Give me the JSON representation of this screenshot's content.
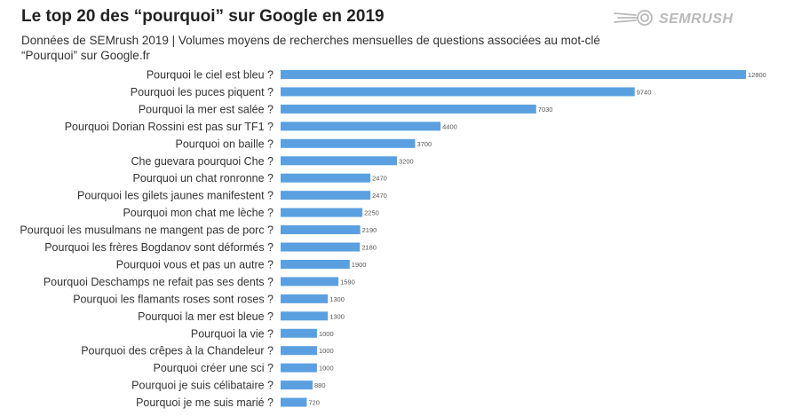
{
  "header": {
    "title": "Le top 20 des “pourquoi” sur Google en 2019",
    "subtitle": "Données de SEMrush 2019 | Volumes moyens de recherches mensuelles de questions associées au mot-clé “Pourquoi” sur Google.fr"
  },
  "logo": {
    "text": "SEMRUSH",
    "icon": "fireball-icon",
    "color": "#b9b9b9"
  },
  "colors": {
    "bar": "#5aa0e0"
  },
  "chart_data": {
    "type": "bar",
    "orientation": "horizontal",
    "categories": [
      "Pourquoi le ciel est bleu ?",
      "Pourquoi les puces piquent ?",
      "Pourquoi la mer est salée ?",
      "Pourquoi Dorian Rossini est pas sur TF1 ?",
      "Pourquoi on baille ?",
      "Che guevara pourquoi Che ?",
      "Pourquoi un chat ronronne ?",
      "Pourquoi les gilets jaunes manifestent ?",
      "Pourquoi mon chat me lèche ?",
      "Pourquoi les musulmans ne mangent pas de porc ?",
      "Pourquoi les frères Bogdanov sont déformés ?",
      "Pourquoi vous et pas un autre ?",
      "Pourquoi Deschamps ne refait pas ses dents ?",
      "Pourquoi les flamants roses sont roses ?",
      "Pourquoi la mer est bleue ?",
      "Pourquoi la vie ?",
      "Pourquoi des crêpes à la Chandeleur ?",
      "Pourquoi créer une sci ?",
      "Pourquoi je suis célibataire ?",
      "Pourquoi je me suis marié ?"
    ],
    "values": [
      12800,
      9740,
      7030,
      4400,
      3700,
      3200,
      2470,
      2470,
      2250,
      2190,
      2180,
      1900,
      1590,
      1300,
      1300,
      1000,
      1000,
      1000,
      880,
      720
    ],
    "value_labels": [
      "12800",
      "9740",
      "7030",
      "4400",
      "3700",
      "3200",
      "2470",
      "2470",
      "2250",
      "2190",
      "2180",
      "1900",
      "1590",
      "1300",
      "1300",
      "1000",
      "1000",
      "1000",
      "880",
      "720"
    ],
    "xlim": [
      0,
      12800
    ],
    "grid": false,
    "legend": "none"
  }
}
